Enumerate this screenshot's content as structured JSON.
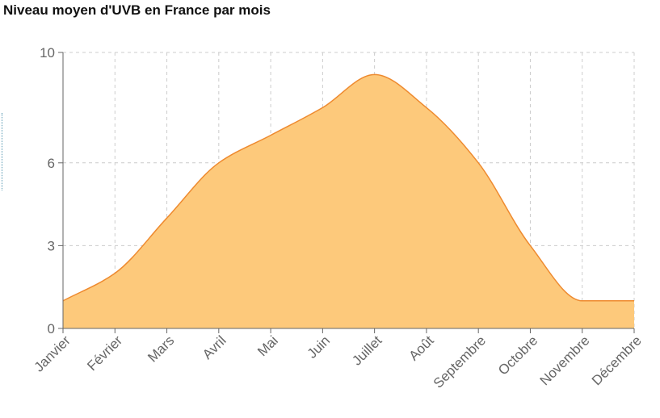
{
  "chart_data": {
    "type": "area",
    "title": "Niveau moyen d'UVB en France par mois",
    "xlabel": "",
    "ylabel": "",
    "categories": [
      "Janvier",
      "Février",
      "Mars",
      "Avril",
      "Mai",
      "Juin",
      "Juillet",
      "Août",
      "Septembre",
      "Octobre",
      "Novembre",
      "Décembre"
    ],
    "values": [
      1,
      2,
      4,
      6,
      7,
      8,
      9.2,
      8,
      6,
      3,
      1,
      1
    ],
    "ylim": [
      0,
      10
    ],
    "yticks": [
      0,
      3,
      6,
      10
    ],
    "grid": true,
    "legend": "none",
    "colors": {
      "fill": "#fdc97b",
      "stroke": "#ee8a2f",
      "grid": "#cccccc",
      "axis": "#666666"
    }
  }
}
